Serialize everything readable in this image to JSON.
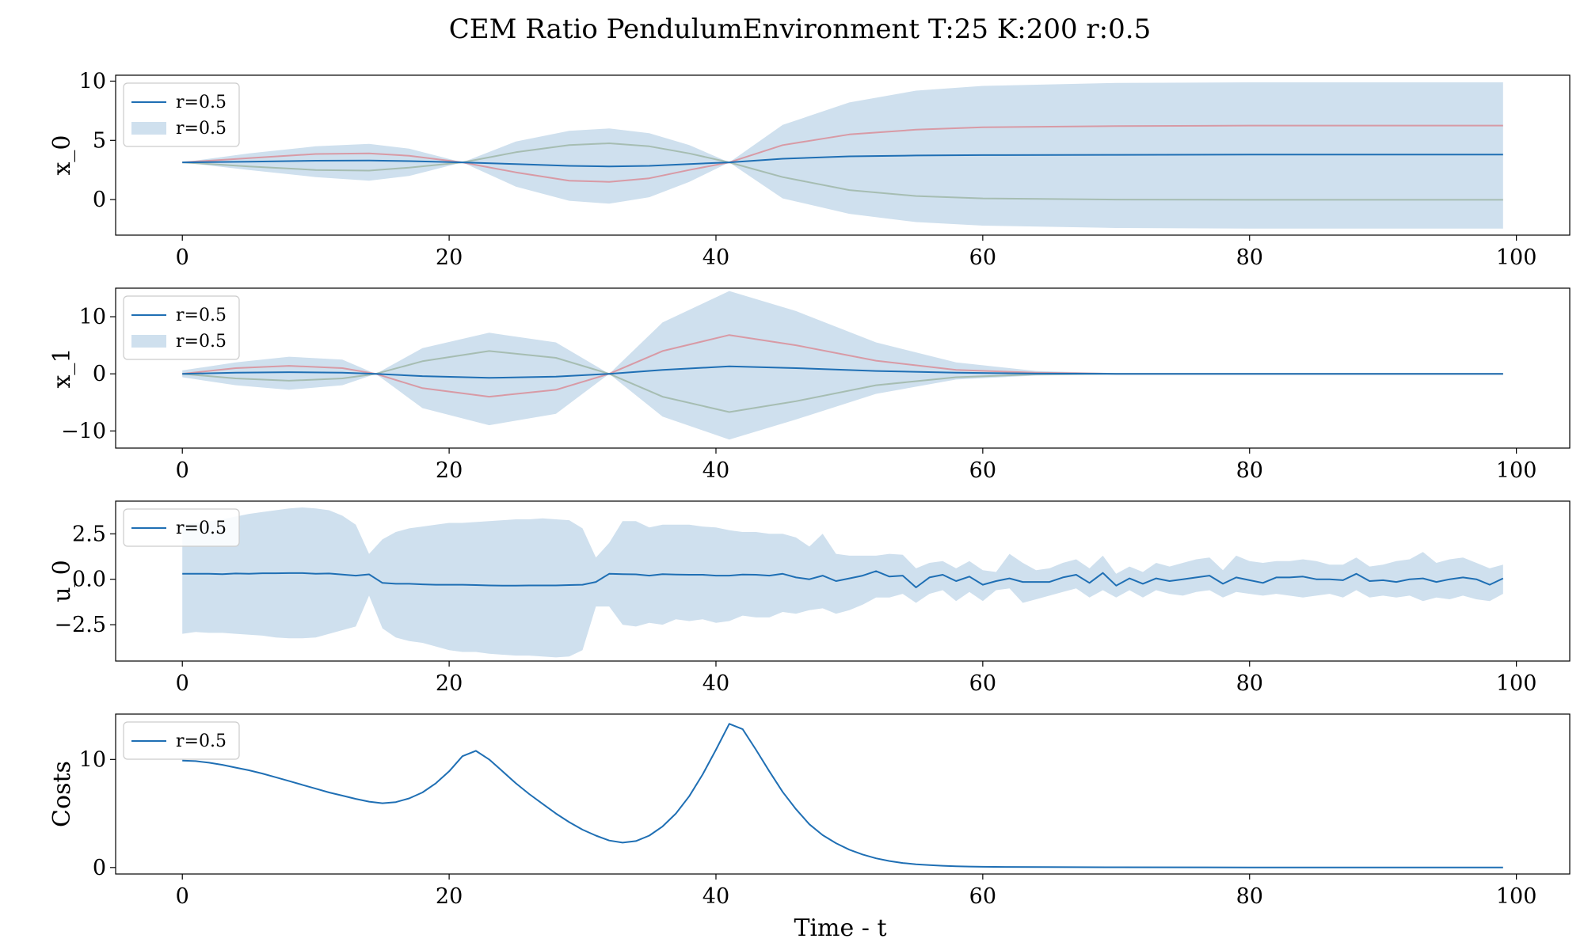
{
  "title": "CEM Ratio PendulumEnvironment T:25 K:200 r:0.5",
  "colors": {
    "mean_line": "#1f6fb4",
    "band": "#cfe0ee",
    "upper_traj": "#d89aa5",
    "lower_traj": "#a6bdb2"
  },
  "chart_data": [
    {
      "type": "line",
      "ylabel": "x_0",
      "xlabel": "",
      "xlim": [
        -5,
        104
      ],
      "ylim": [
        -3,
        10.5
      ],
      "xticks": [
        0,
        20,
        40,
        60,
        80,
        100
      ],
      "yticks": [
        0,
        5,
        10
      ],
      "ytick_labels": [
        "0",
        "5",
        "10"
      ],
      "legend": {
        "placement": "upper-left",
        "entries": [
          {
            "kind": "line",
            "label": "r=0.5"
          },
          {
            "kind": "band",
            "label": "r=0.5"
          }
        ]
      },
      "x": [
        0,
        5,
        10,
        14,
        17,
        21,
        25,
        29,
        32,
        35,
        38,
        41,
        45,
        50,
        55,
        60,
        70,
        80,
        90,
        99
      ],
      "mean": [
        3.14,
        3.2,
        3.28,
        3.3,
        3.25,
        3.14,
        3.0,
        2.85,
        2.8,
        2.85,
        3.0,
        3.14,
        3.45,
        3.65,
        3.72,
        3.76,
        3.78,
        3.8,
        3.8,
        3.8
      ],
      "upper": [
        3.14,
        3.9,
        4.5,
        4.7,
        4.3,
        3.14,
        4.9,
        5.8,
        6.0,
        5.6,
        4.6,
        3.14,
        6.3,
        8.2,
        9.2,
        9.6,
        9.85,
        9.9,
        9.9,
        9.9
      ],
      "lower": [
        3.14,
        2.5,
        1.9,
        1.6,
        2.0,
        3.14,
        1.1,
        -0.1,
        -0.35,
        0.2,
        1.5,
        3.14,
        0.1,
        -1.2,
        -1.9,
        -2.2,
        -2.4,
        -2.45,
        -2.45,
        -2.45
      ],
      "traj_upper": [
        3.14,
        3.5,
        3.85,
        3.9,
        3.7,
        3.14,
        2.3,
        1.6,
        1.5,
        1.8,
        2.5,
        3.14,
        4.6,
        5.5,
        5.9,
        6.1,
        6.2,
        6.25,
        6.25,
        6.25
      ],
      "traj_lower": [
        3.14,
        2.8,
        2.5,
        2.45,
        2.7,
        3.14,
        4.0,
        4.6,
        4.75,
        4.5,
        3.9,
        3.14,
        1.9,
        0.8,
        0.3,
        0.1,
        0.0,
        -0.02,
        -0.02,
        -0.02
      ]
    },
    {
      "type": "line",
      "ylabel": "x_1",
      "xlabel": "",
      "xlim": [
        -5,
        104
      ],
      "ylim": [
        -13,
        15
      ],
      "xticks": [
        0,
        20,
        40,
        60,
        80,
        100
      ],
      "yticks": [
        -10,
        0,
        10
      ],
      "ytick_labels": [
        "−10",
        "0",
        "10"
      ],
      "legend": {
        "placement": "upper-left",
        "entries": [
          {
            "kind": "line",
            "label": "r=0.5"
          },
          {
            "kind": "band",
            "label": "r=0.5"
          }
        ]
      },
      "x": [
        0,
        4,
        8,
        12,
        14.5,
        18,
        23,
        28,
        32,
        36,
        41,
        46,
        52,
        58,
        64,
        70,
        80,
        90,
        99
      ],
      "mean": [
        0,
        0.2,
        0.3,
        0.2,
        0,
        -0.4,
        -0.7,
        -0.5,
        0,
        0.7,
        1.3,
        1.0,
        0.5,
        0.2,
        0.05,
        0,
        0,
        0,
        0
      ],
      "upper": [
        0.6,
        2.0,
        3.0,
        2.5,
        0,
        4.5,
        7.2,
        5.5,
        0,
        9.0,
        14.5,
        11.0,
        5.5,
        2.0,
        0.5,
        0.1,
        0.05,
        0.05,
        0.05
      ],
      "lower": [
        -0.6,
        -2.0,
        -2.8,
        -2.0,
        0,
        -6.0,
        -9.0,
        -7.0,
        0,
        -7.5,
        -11.5,
        -8.0,
        -3.5,
        -1.0,
        -0.3,
        -0.1,
        -0.05,
        -0.05,
        -0.05
      ],
      "traj_upper": [
        0,
        1.0,
        1.4,
        1.0,
        0,
        -2.5,
        -4.0,
        -2.8,
        0,
        4.0,
        6.8,
        5.0,
        2.3,
        0.7,
        0.2,
        0,
        0,
        0,
        0
      ],
      "traj_lower": [
        0,
        -0.8,
        -1.2,
        -0.8,
        0,
        2.2,
        4.0,
        2.8,
        0,
        -4.0,
        -6.7,
        -4.8,
        -2.0,
        -0.6,
        -0.1,
        0,
        0,
        0,
        0
      ]
    },
    {
      "type": "line",
      "ylabel": "u_0",
      "xlabel": "",
      "xlim": [
        -5,
        104
      ],
      "ylim": [
        -4.5,
        4.3
      ],
      "xticks": [
        0,
        20,
        40,
        60,
        80,
        100
      ],
      "yticks": [
        -2.5,
        0,
        2.5
      ],
      "ytick_labels": [
        "−2.5",
        "0.0",
        "2.5"
      ],
      "legend": {
        "placement": "upper-left",
        "entries": [
          {
            "kind": "line",
            "label": "r=0.5"
          }
        ]
      },
      "x": [
        0,
        1,
        2,
        3,
        4,
        5,
        6,
        7,
        8,
        9,
        10,
        11,
        12,
        13,
        14,
        15,
        16,
        17,
        18,
        19,
        20,
        21,
        22,
        23,
        24,
        25,
        26,
        27,
        28,
        29,
        30,
        31,
        32,
        33,
        34,
        35,
        36,
        37,
        38,
        39,
        40,
        41,
        42,
        43,
        44,
        45,
        46,
        47,
        48,
        49,
        50,
        51,
        52,
        53,
        54,
        55,
        56,
        57,
        58,
        59,
        60,
        61,
        62,
        63,
        64,
        65,
        66,
        67,
        68,
        69,
        70,
        71,
        72,
        73,
        74,
        75,
        76,
        77,
        78,
        79,
        80,
        81,
        82,
        83,
        84,
        85,
        86,
        87,
        88,
        89,
        90,
        91,
        92,
        93,
        94,
        95,
        96,
        97,
        98,
        99
      ],
      "mean": [
        0.3,
        0.3,
        0.3,
        0.28,
        0.32,
        0.3,
        0.33,
        0.33,
        0.34,
        0.34,
        0.3,
        0.32,
        0.26,
        0.2,
        0.27,
        -0.2,
        -0.25,
        -0.25,
        -0.28,
        -0.3,
        -0.3,
        -0.3,
        -0.32,
        -0.34,
        -0.35,
        -0.35,
        -0.34,
        -0.34,
        -0.34,
        -0.32,
        -0.3,
        -0.15,
        0.3,
        0.28,
        0.27,
        0.2,
        0.28,
        0.26,
        0.25,
        0.25,
        0.2,
        0.2,
        0.26,
        0.25,
        0.2,
        0.3,
        0.1,
        0.0,
        0.2,
        -0.1,
        0.05,
        0.2,
        0.45,
        0.15,
        0.2,
        -0.45,
        0.1,
        0.25,
        -0.1,
        0.15,
        -0.3,
        -0.1,
        0.05,
        -0.15,
        -0.15,
        -0.15,
        0.1,
        0.25,
        -0.2,
        0.35,
        -0.35,
        0.05,
        -0.25,
        0.05,
        -0.1,
        0.0,
        0.1,
        0.2,
        -0.25,
        0.1,
        -0.05,
        -0.2,
        0.1,
        0.1,
        0.15,
        0.0,
        0.0,
        -0.05,
        0.3,
        -0.1,
        -0.05,
        -0.15,
        0.0,
        0.05,
        -0.15,
        0.0,
        0.1,
        0.0,
        -0.3,
        0.05
      ],
      "upper": [
        3.0,
        3.1,
        3.2,
        3.3,
        3.45,
        3.6,
        3.7,
        3.8,
        3.9,
        3.95,
        3.9,
        3.8,
        3.5,
        3.0,
        1.4,
        2.2,
        2.6,
        2.8,
        2.9,
        3.0,
        3.1,
        3.1,
        3.15,
        3.2,
        3.25,
        3.3,
        3.3,
        3.35,
        3.3,
        3.25,
        2.8,
        1.2,
        2.0,
        3.2,
        3.2,
        2.85,
        3.0,
        3.0,
        3.0,
        2.9,
        2.85,
        2.7,
        2.6,
        2.6,
        2.5,
        2.5,
        2.3,
        1.8,
        2.5,
        1.4,
        1.3,
        1.3,
        1.3,
        1.4,
        1.35,
        0.6,
        0.9,
        1.0,
        0.6,
        1.0,
        0.5,
        0.4,
        1.4,
        0.9,
        0.5,
        0.6,
        0.9,
        1.1,
        0.6,
        1.3,
        0.3,
        0.7,
        0.4,
        0.9,
        0.7,
        0.9,
        1.1,
        1.2,
        0.5,
        1.3,
        1.0,
        0.9,
        1.0,
        1.0,
        1.1,
        1.0,
        0.8,
        0.8,
        1.2,
        0.7,
        0.8,
        1.0,
        1.1,
        1.5,
        0.9,
        1.1,
        1.2,
        0.9,
        0.6,
        0.8
      ],
      "lower": [
        -3.0,
        -2.9,
        -2.95,
        -2.95,
        -3.0,
        -3.05,
        -3.1,
        -3.2,
        -3.25,
        -3.25,
        -3.2,
        -3.0,
        -2.8,
        -2.6,
        -0.9,
        -2.7,
        -3.2,
        -3.4,
        -3.5,
        -3.7,
        -3.9,
        -4.0,
        -4.0,
        -4.1,
        -4.15,
        -4.2,
        -4.2,
        -4.25,
        -4.3,
        -4.25,
        -3.9,
        -1.5,
        -1.5,
        -2.5,
        -2.6,
        -2.4,
        -2.5,
        -2.2,
        -2.3,
        -2.2,
        -2.4,
        -2.3,
        -2.0,
        -2.1,
        -2.1,
        -1.8,
        -1.9,
        -1.7,
        -1.6,
        -1.9,
        -1.7,
        -1.4,
        -1.0,
        -1.0,
        -0.8,
        -1.3,
        -0.8,
        -0.6,
        -1.2,
        -0.7,
        -1.2,
        -0.6,
        -0.5,
        -1.3,
        -1.1,
        -0.9,
        -0.7,
        -0.5,
        -1.0,
        -0.6,
        -1.0,
        -0.6,
        -1.0,
        -0.6,
        -0.8,
        -0.9,
        -0.7,
        -0.6,
        -1.0,
        -0.7,
        -0.8,
        -0.9,
        -0.8,
        -0.9,
        -1.0,
        -0.9,
        -0.8,
        -1.0,
        -0.6,
        -1.0,
        -0.9,
        -1.0,
        -0.9,
        -1.2,
        -1.0,
        -1.1,
        -0.9,
        -1.1,
        -1.2,
        -0.8
      ]
    },
    {
      "type": "line",
      "ylabel": "Costs",
      "xlabel": "Time - t",
      "xlim": [
        -5,
        104
      ],
      "ylim": [
        -0.6,
        14.2
      ],
      "xticks": [
        0,
        20,
        40,
        60,
        80,
        100
      ],
      "yticks": [
        0,
        10
      ],
      "ytick_labels": [
        "0",
        "10"
      ],
      "legend": {
        "placement": "upper-left",
        "entries": [
          {
            "kind": "line",
            "label": "r=0.5"
          }
        ]
      },
      "x": [
        0,
        1,
        2,
        3,
        4,
        5,
        6,
        7,
        8,
        9,
        10,
        11,
        12,
        13,
        14,
        15,
        16,
        17,
        18,
        19,
        20,
        21,
        22,
        23,
        24,
        25,
        26,
        27,
        28,
        29,
        30,
        31,
        32,
        33,
        34,
        35,
        36,
        37,
        38,
        39,
        40,
        41,
        42,
        43,
        44,
        45,
        46,
        47,
        48,
        49,
        50,
        51,
        52,
        53,
        54,
        55,
        56,
        57,
        58,
        59,
        60,
        62,
        65,
        70,
        80,
        90,
        99
      ],
      "values": [
        9.9,
        9.85,
        9.7,
        9.5,
        9.25,
        9.0,
        8.7,
        8.35,
        8.0,
        7.65,
        7.3,
        6.95,
        6.65,
        6.35,
        6.1,
        5.95,
        6.05,
        6.4,
        6.95,
        7.8,
        8.9,
        10.3,
        10.8,
        10.0,
        8.9,
        7.8,
        6.8,
        5.9,
        5.0,
        4.2,
        3.5,
        2.95,
        2.5,
        2.3,
        2.45,
        2.95,
        3.8,
        5.0,
        6.6,
        8.6,
        10.9,
        13.3,
        12.8,
        10.9,
        8.9,
        7.0,
        5.4,
        4.0,
        3.0,
        2.25,
        1.65,
        1.2,
        0.85,
        0.6,
        0.42,
        0.3,
        0.22,
        0.16,
        0.12,
        0.09,
        0.07,
        0.05,
        0.04,
        0.02,
        0.01,
        0.01,
        0.01
      ]
    }
  ]
}
